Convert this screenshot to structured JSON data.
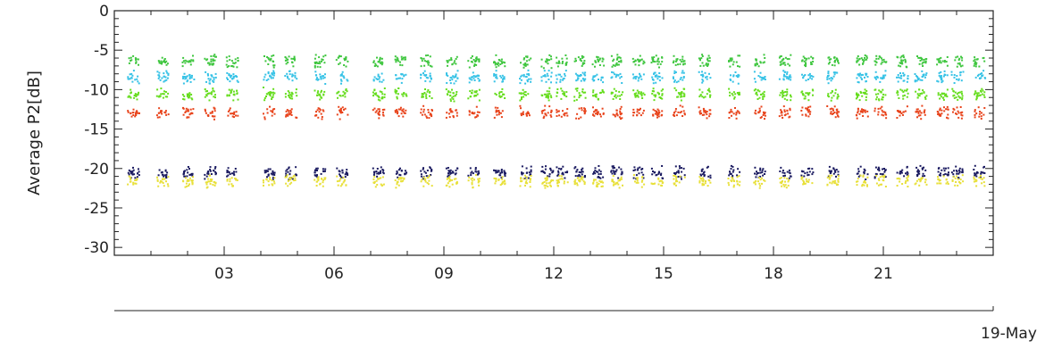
{
  "chart_data": {
    "type": "scatter",
    "title": "",
    "ylabel": "Average  P2[dB]",
    "xlabel": "19-May",
    "ylim": [
      -31,
      0
    ],
    "xlim": [
      0,
      24
    ],
    "yticks": [
      0,
      -5,
      -10,
      -15,
      -20,
      -25,
      -30
    ],
    "xticks": [
      3,
      6,
      9,
      12,
      15,
      18,
      21
    ],
    "xtick_labels": [
      "03",
      "06",
      "09",
      "12",
      "15",
      "18",
      "21"
    ],
    "date_label": "19-May",
    "grid": false,
    "legend": "none",
    "acquisition_hours": [
      0.5,
      1.3,
      2.0,
      2.6,
      3.2,
      4.2,
      4.8,
      5.6,
      6.2,
      7.2,
      7.8,
      8.5,
      9.2,
      9.8,
      10.5,
      11.2,
      11.8,
      12.2,
      12.7,
      13.2,
      13.7,
      14.3,
      14.8,
      15.4,
      16.1,
      16.9,
      17.6,
      18.3,
      18.9,
      19.6,
      20.4,
      20.9,
      21.5,
      22.0,
      22.6,
      23.0,
      23.6
    ],
    "series": [
      {
        "color": "#3fc63f",
        "center_db": -6.3
      },
      {
        "color": "#36c2e6",
        "center_db": -8.3
      },
      {
        "color": "#66dd1e",
        "center_db": -10.5
      },
      {
        "color": "#e8441c",
        "center_db": -12.8
      },
      {
        "color": "#1a1a60",
        "center_db": -20.4
      },
      {
        "color": "#e8e03a",
        "center_db": -21.5
      }
    ]
  }
}
